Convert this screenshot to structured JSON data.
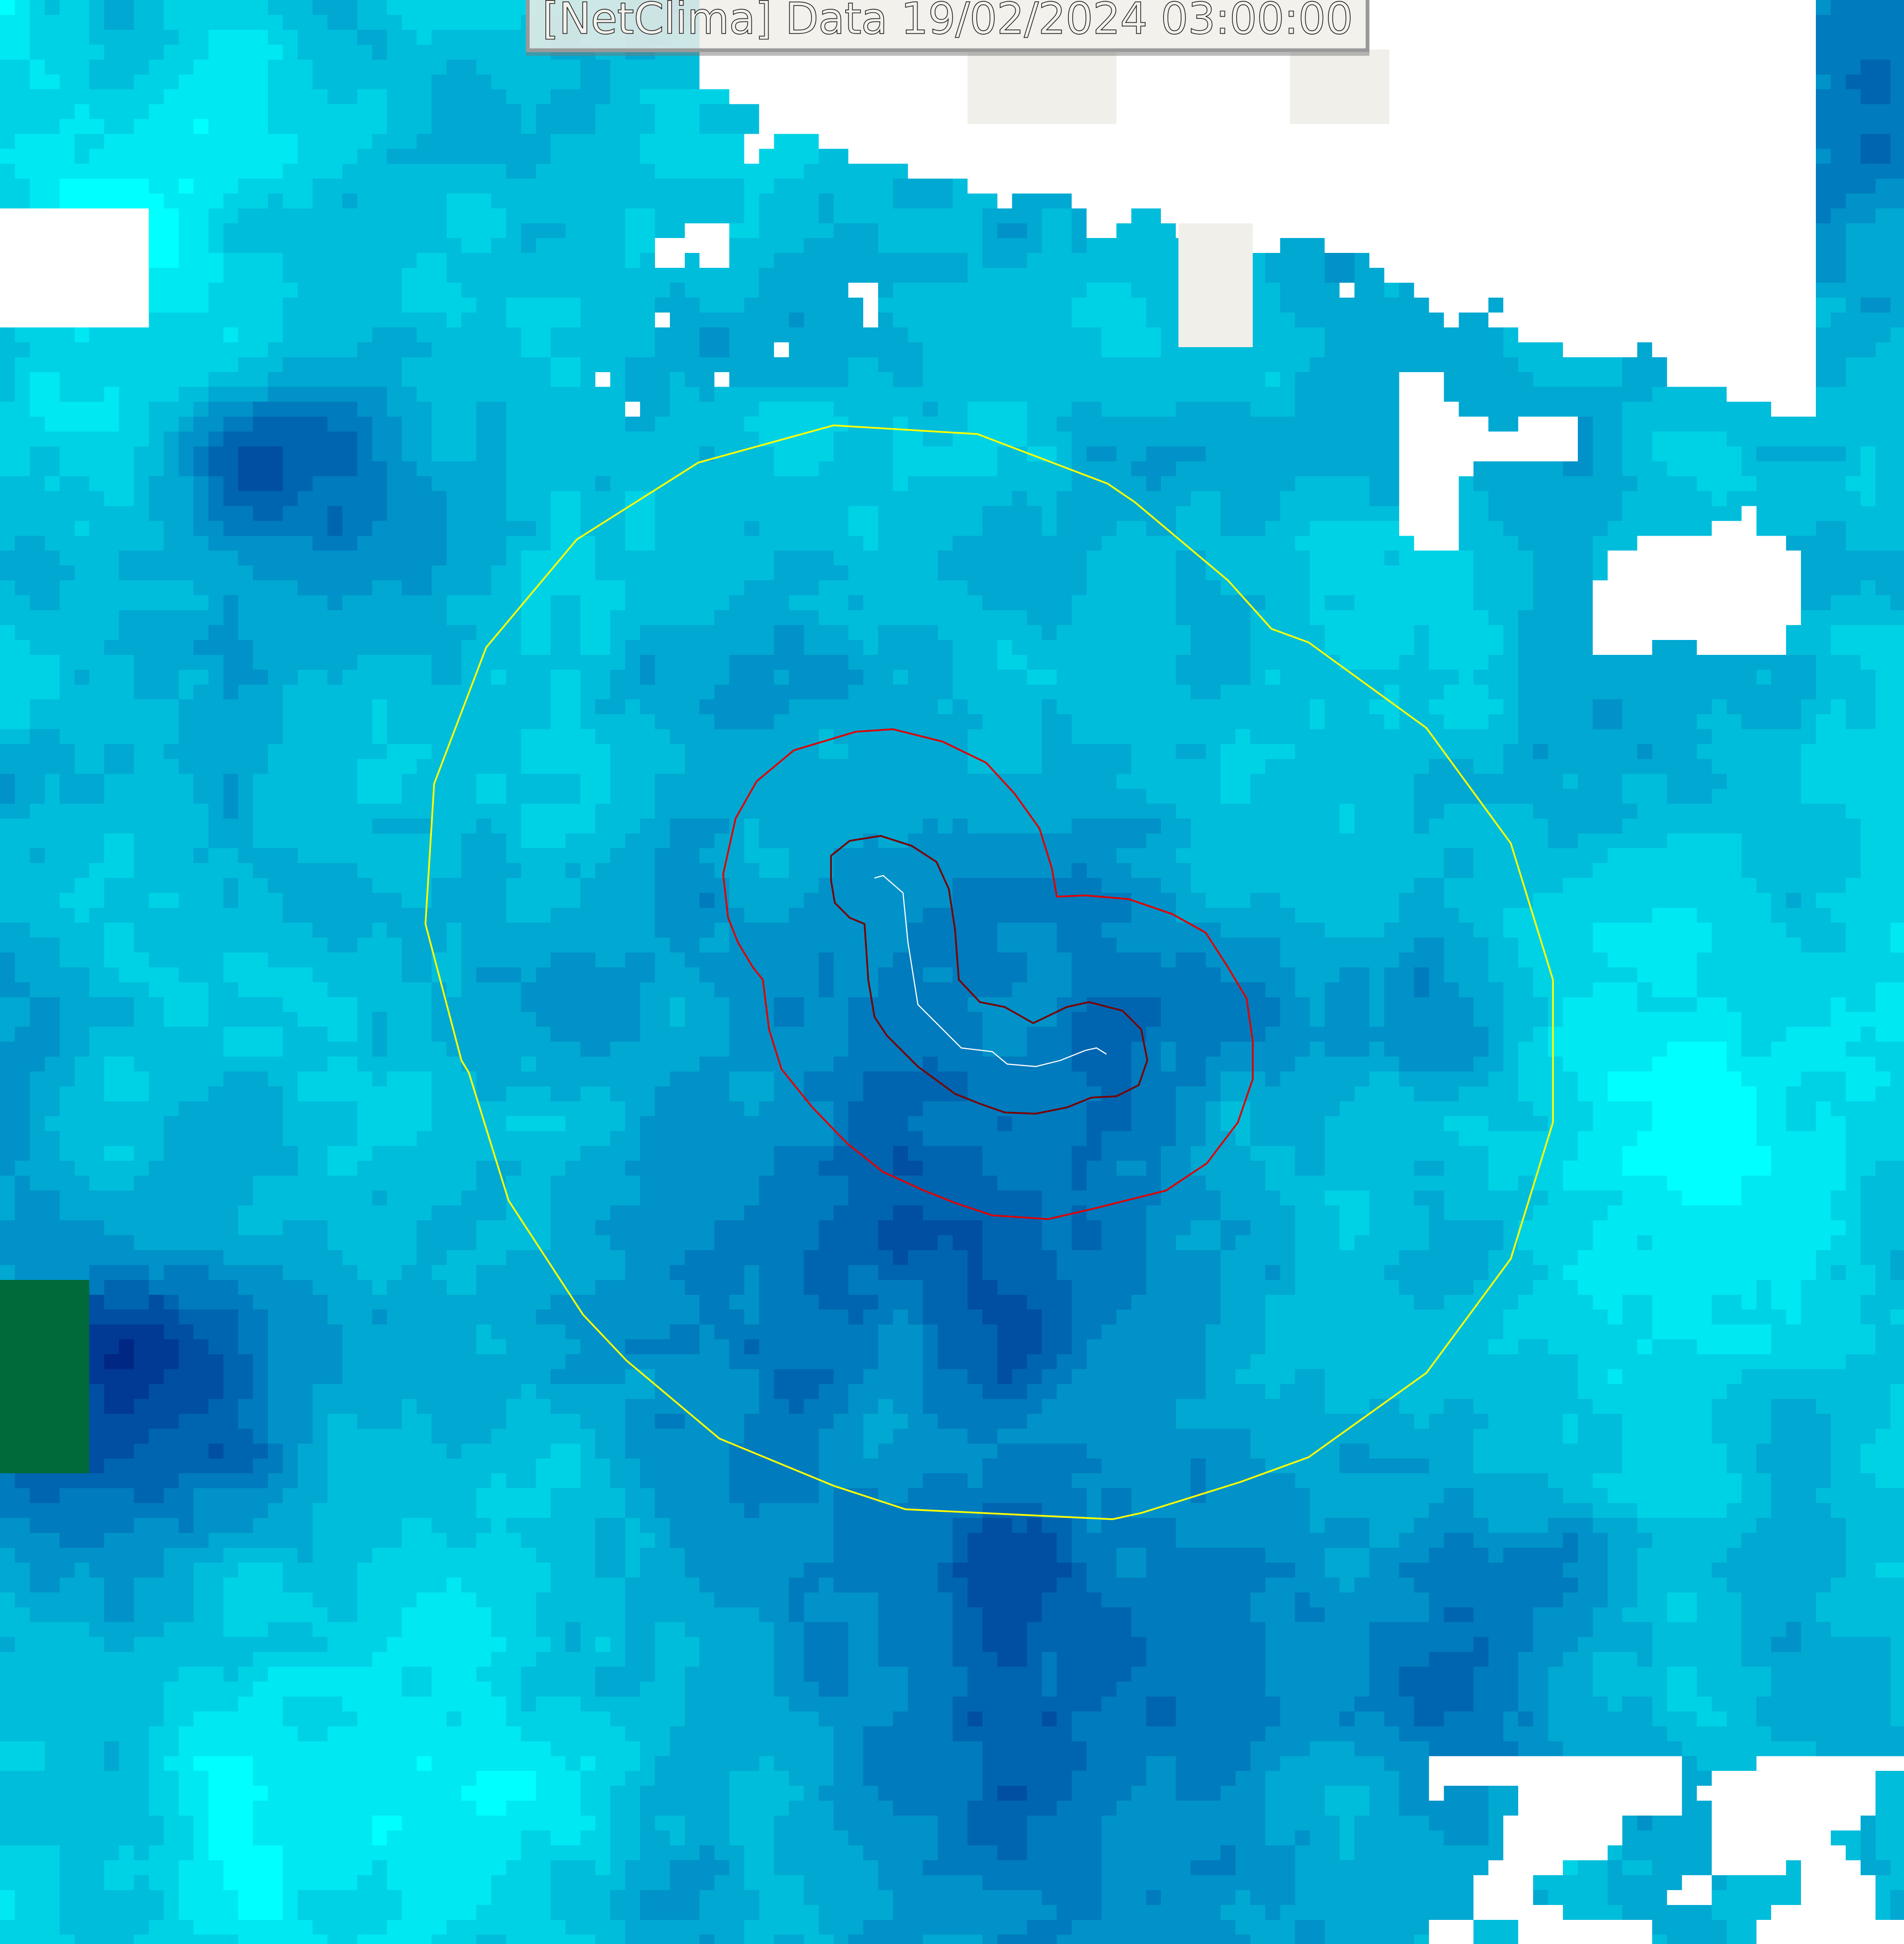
{
  "map": {
    "title": "[NetClima] Data 19/02/2024 03:00:00",
    "layers": {
      "outer_contour": {
        "color": "#ffff00"
      },
      "middle_contour": {
        "color": "#e00000"
      },
      "inner_contour": {
        "color": "#7a0000"
      },
      "track": {
        "color": "#ffffff"
      }
    },
    "palette": [
      "#00ffff",
      "#00e8f2",
      "#00d2e6",
      "#00bddb",
      "#00a8d2",
      "#0092c8",
      "#007bbd",
      "#0065b0",
      "#004fa2",
      "#003a94",
      "#002784",
      "#001a78",
      "#00106a"
    ],
    "cloud_color": "#ffffff",
    "land_color": "#f1efe9",
    "green_color": "#006a3a"
  }
}
